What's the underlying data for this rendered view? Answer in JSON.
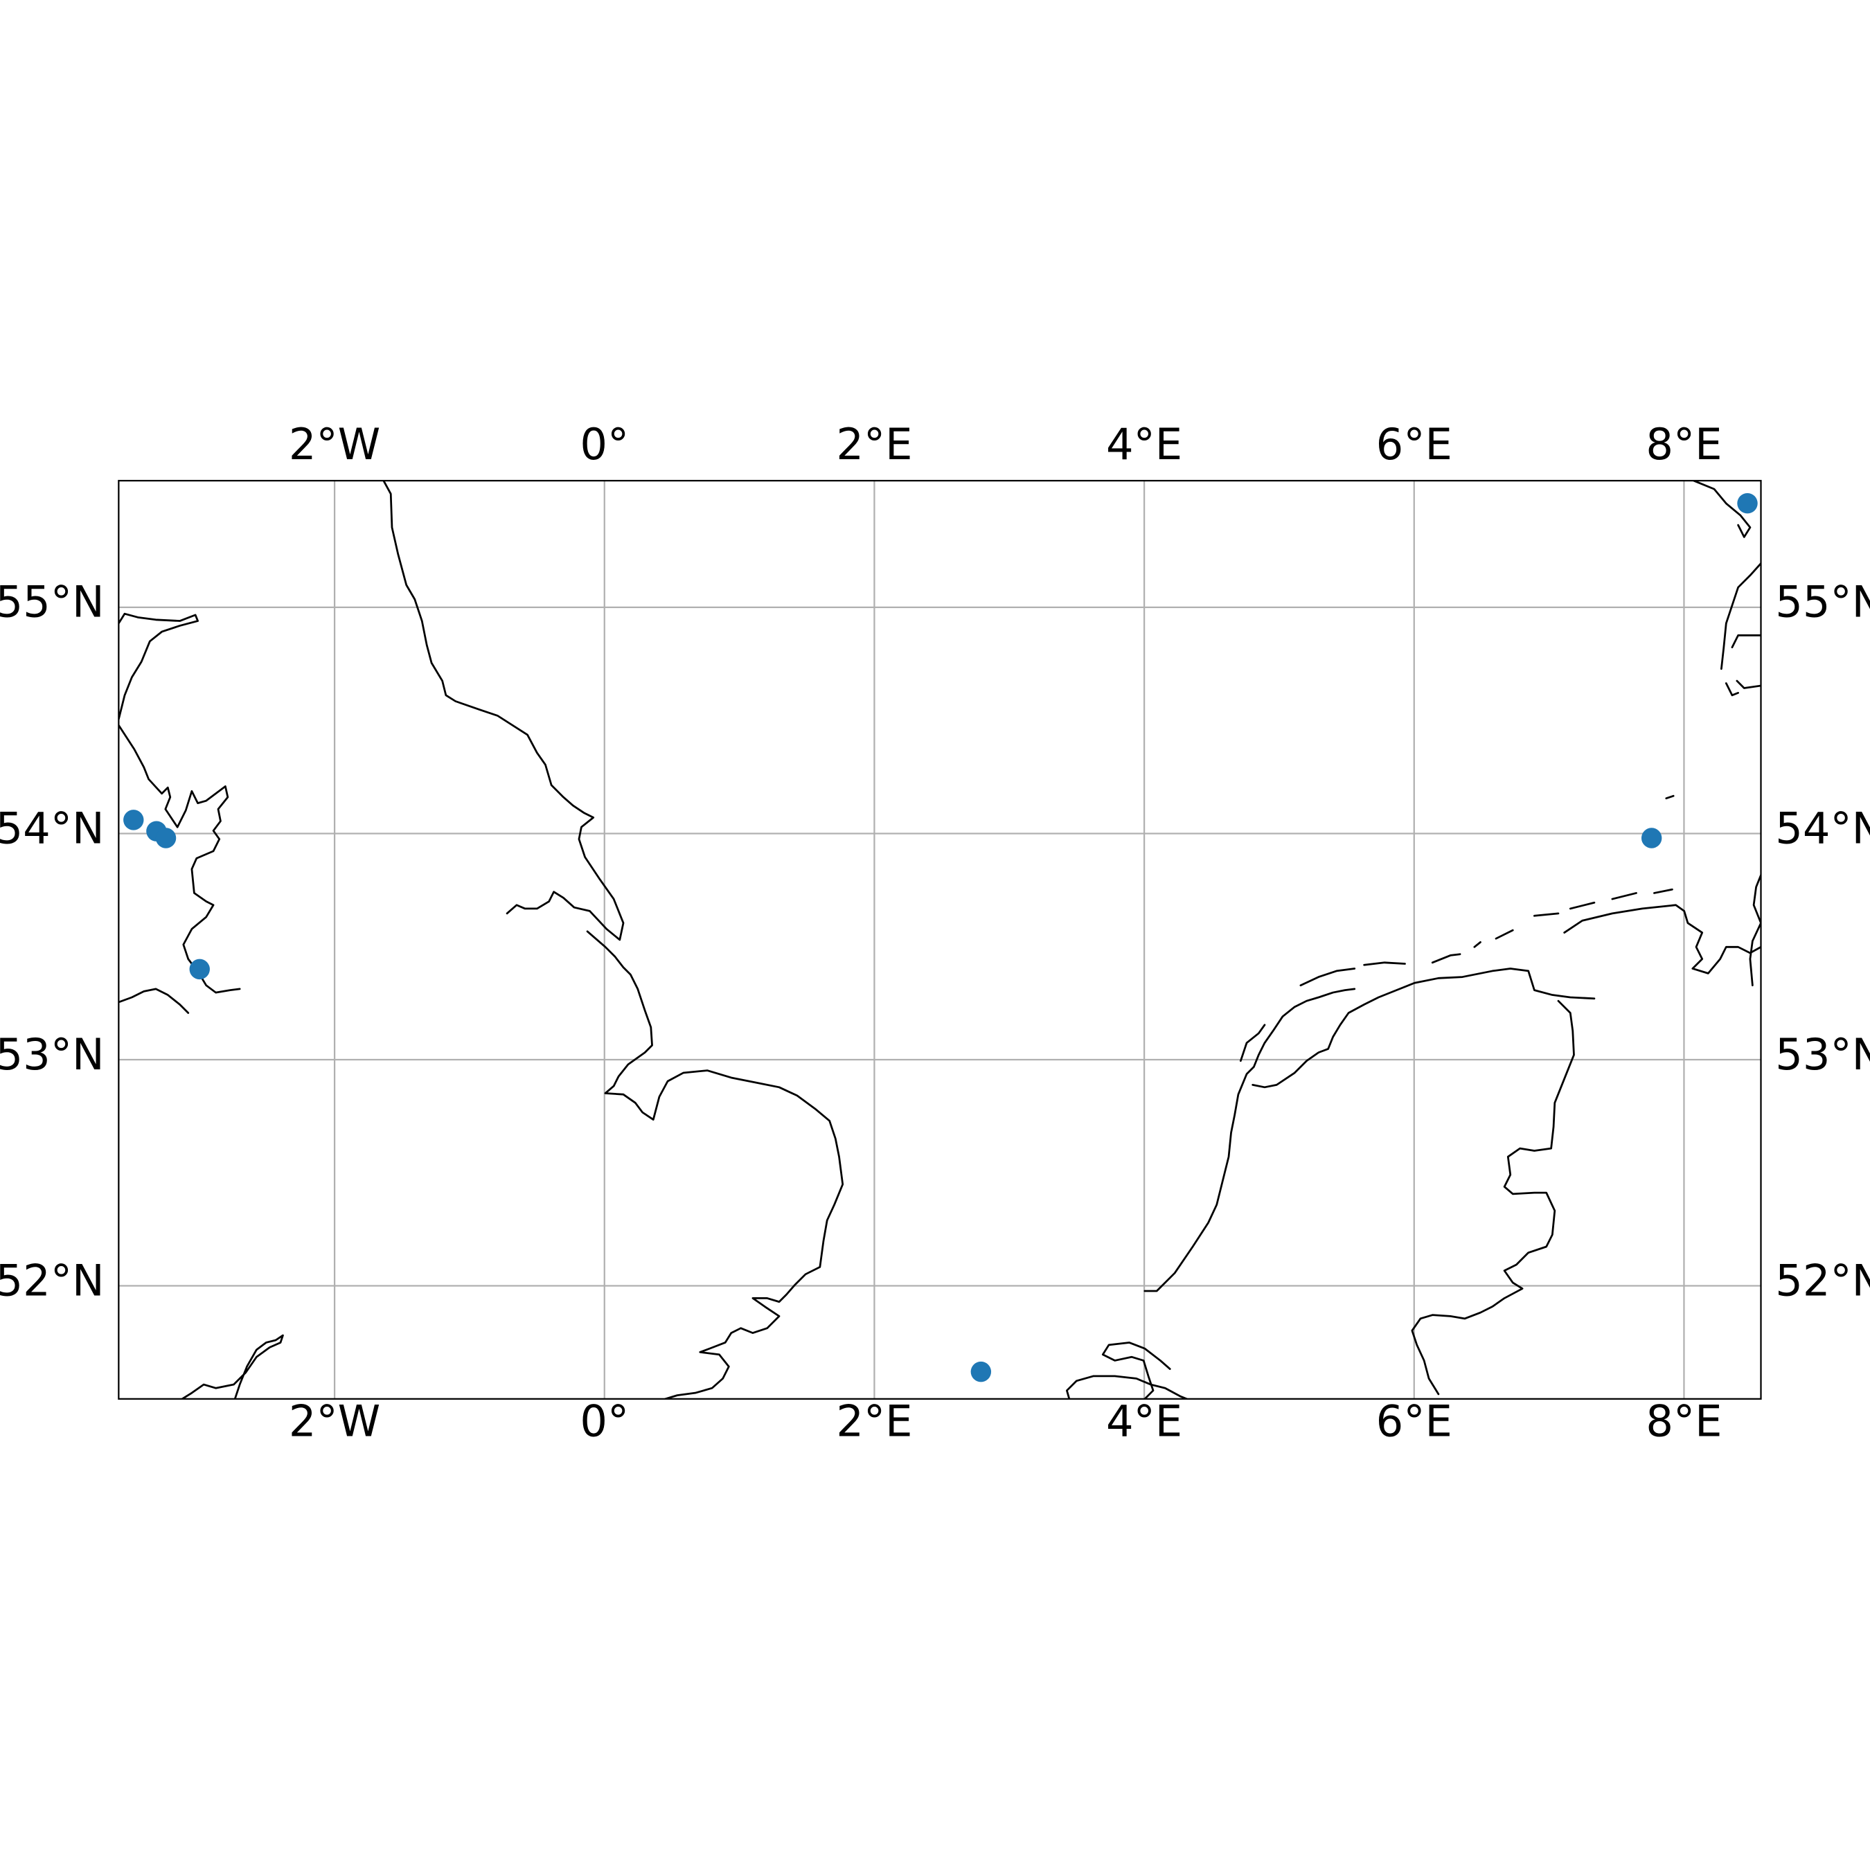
{
  "map": {
    "projection": "PlateCarree",
    "extent": {
      "lon_min": -3.6,
      "lon_max": 8.57,
      "lat_min": 51.5,
      "lat_max": 55.56
    },
    "gridlines": true,
    "grid_color": "#b0b0b0",
    "coastline_color": "#000000",
    "marker_color": "#1f77b4",
    "lon_ticks": [
      {
        "value": -2,
        "label": "2°W"
      },
      {
        "value": 0,
        "label": "0°"
      },
      {
        "value": 2,
        "label": "2°E"
      },
      {
        "value": 4,
        "label": "4°E"
      },
      {
        "value": 6,
        "label": "6°E"
      },
      {
        "value": 8,
        "label": "8°E"
      }
    ],
    "lat_ticks": [
      {
        "value": 52,
        "label": "52°N"
      },
      {
        "value": 53,
        "label": "53°N"
      },
      {
        "value": 54,
        "label": "54°N"
      },
      {
        "value": 55,
        "label": "55°N"
      }
    ]
  },
  "chart_data": {
    "type": "scatter",
    "x": [
      -3.49,
      -3.32,
      -3.25,
      -3.0,
      2.79,
      7.76,
      8.47
    ],
    "y": [
      54.06,
      54.01,
      53.98,
      53.4,
      51.62,
      53.98,
      55.46
    ],
    "xlabel": "",
    "ylabel": "",
    "xlim": [
      -3.6,
      8.57
    ],
    "ylim": [
      51.5,
      55.56
    ],
    "grid": true
  }
}
